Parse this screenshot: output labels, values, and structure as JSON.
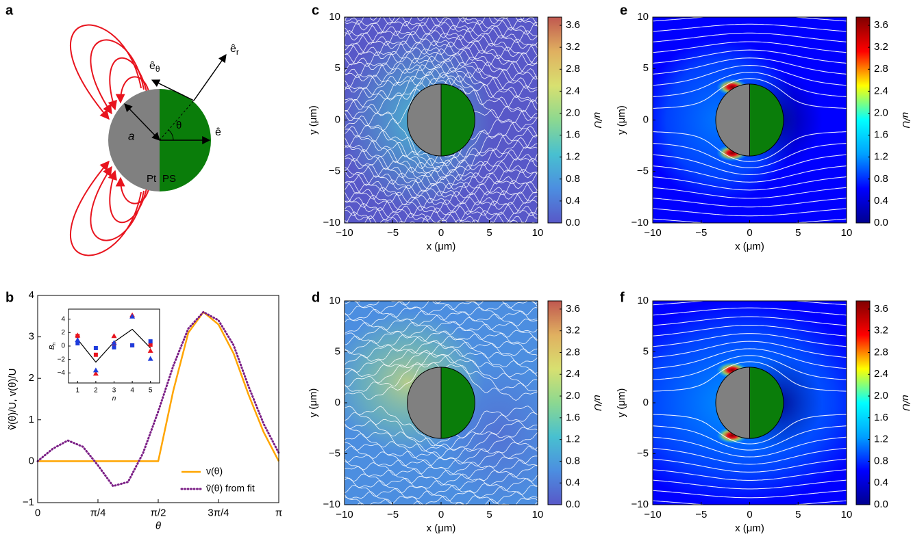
{
  "diagram": {
    "panel": "a",
    "e_theta": {
      "base": "ê",
      "sub": "θ"
    },
    "e_r": {
      "base": "ê",
      "sub": "r"
    },
    "radius": "a",
    "angle": "θ",
    "e": "ê",
    "left_material": "Pt",
    "right_material": "PS"
  },
  "chart_data": [
    {
      "type": "line",
      "panel": "b",
      "xlabel": "θ",
      "ylabel": "ṽ(θ)/U, v(θ)/U",
      "x": [
        0,
        0.196,
        0.393,
        0.589,
        0.785,
        0.982,
        1.178,
        1.374,
        1.571,
        1.767,
        1.963,
        2.16,
        2.356,
        2.553,
        2.749,
        2.945,
        3.1416
      ],
      "xlim": [
        0,
        3.1416
      ],
      "xticks": [
        0,
        {
          "value": 0.7854,
          "label": "π/4"
        },
        {
          "value": 1.5708,
          "label": "π/2"
        },
        {
          "value": 2.3562,
          "label": "3π/4"
        },
        {
          "value": 3.1416,
          "label": "π"
        }
      ],
      "ylim": [
        -1,
        4
      ],
      "yticks": [
        {
          "value": -1,
          "label": "−1"
        },
        0,
        1,
        2,
        3,
        4
      ],
      "legend": "lower right",
      "series": [
        {
          "name": "v(θ)",
          "color": "#ffa500",
          "style": "solid",
          "values": [
            0,
            0,
            0,
            0,
            0,
            0,
            0,
            0,
            0,
            1.7,
            3.1,
            3.6,
            3.3,
            2.6,
            1.6,
            0.7,
            0
          ]
        },
        {
          "name": "ṽ(θ) from fit",
          "color": "#7b1f86",
          "style": "dotted",
          "values": [
            0,
            0.3,
            0.5,
            0.35,
            -0.1,
            -0.6,
            -0.5,
            0.2,
            1.2,
            2.3,
            3.2,
            3.6,
            3.4,
            2.8,
            1.8,
            0.9,
            0.2
          ]
        }
      ]
    },
    {
      "type": "line",
      "xlabel": "n",
      "ylabel": {
        "base": "B",
        "sub": "n"
      },
      "x": [
        1,
        2,
        3,
        4,
        5
      ],
      "xlim": [
        0.5,
        5.5
      ],
      "xticks": [
        1,
        2,
        3,
        4,
        5
      ],
      "ylim": [
        -5.5,
        5.5
      ],
      "yticks": [
        {
          "value": -4,
          "label": "−4"
        },
        {
          "value": -2,
          "label": "−2"
        },
        0,
        2,
        4
      ],
      "series": [
        {
          "color": "#000000",
          "style": "solid",
          "values": [
            1.0,
            -2.4,
            0.6,
            2.5,
            -0.3
          ]
        },
        {
          "color": "#e8141e",
          "marker": "square",
          "values": [
            1.5,
            -1.3,
            0.3,
            0.1,
            0.2
          ]
        },
        {
          "color": "#1e3cdc",
          "marker": "square",
          "values": [
            0.4,
            -0.3,
            -0.2,
            0.1,
            0.7
          ]
        },
        {
          "color": "#e8141e",
          "marker": "triangle",
          "values": [
            1.6,
            -4.1,
            1.5,
            4.6,
            -0.7
          ]
        },
        {
          "color": "#1e3cdc",
          "marker": "triangle",
          "values": [
            0.9,
            -3.6,
            0.5,
            4.4,
            -1.9
          ]
        }
      ]
    },
    {
      "type": "heatmap",
      "panel": "c",
      "xlabel": "x (μm)",
      "ylabel": "y (μm)",
      "clabel": "u/U",
      "xlim": [
        -10,
        10
      ],
      "ylim": [
        -10,
        10
      ],
      "xticks": [
        {
          "value": -10,
          "label": "−10"
        },
        {
          "value": -5,
          "label": "−5"
        },
        0,
        5,
        10
      ],
      "yticks": [
        {
          "value": -10,
          "label": "−10"
        },
        {
          "value": -5,
          "label": "−5"
        },
        0,
        5,
        10
      ],
      "clim": [
        0,
        3.75
      ],
      "cticks": [
        {
          "value": 0,
          "label": "0.0"
        },
        0.4,
        0.8,
        1.2,
        1.6,
        {
          "value": 2,
          "label": "2.0"
        },
        2.4,
        2.8,
        3.2,
        3.6
      ],
      "colormap": [
        "#5858c8",
        "#4c8ee0",
        "#48c0d0",
        "#8cd890",
        "#d8e070",
        "#e0b060",
        "#c05850"
      ]
    },
    {
      "type": "heatmap",
      "panel": "d",
      "xlabel": "x (μm)",
      "ylabel": "y (μm)",
      "clabel": "u/U",
      "xlim": [
        -10,
        10
      ],
      "ylim": [
        -10,
        10
      ],
      "xticks": [
        {
          "value": -10,
          "label": "−10"
        },
        {
          "value": -5,
          "label": "−5"
        },
        0,
        5,
        10
      ],
      "yticks": [
        {
          "value": -10,
          "label": "−10"
        },
        {
          "value": -5,
          "label": "−5"
        },
        0,
        5,
        10
      ],
      "clim": [
        0,
        3.75
      ],
      "cticks": [
        {
          "value": 0,
          "label": "0.0"
        },
        0.4,
        0.8,
        1.2,
        1.6,
        {
          "value": 2,
          "label": "2.0"
        },
        2.4,
        2.8,
        3.2,
        3.6
      ],
      "colormap": [
        "#5858c8",
        "#4c8ee0",
        "#48c0d0",
        "#8cd890",
        "#d8e070",
        "#e0b060",
        "#c05850"
      ]
    },
    {
      "type": "heatmap",
      "panel": "e",
      "xlabel": "x (μm)",
      "ylabel": "y (μm)",
      "clabel": "u/U",
      "xlim": [
        -10,
        10
      ],
      "ylim": [
        -10,
        10
      ],
      "xticks": [
        {
          "value": -10,
          "label": "−10"
        },
        {
          "value": -5,
          "label": "−5"
        },
        0,
        5,
        10
      ],
      "yticks": [
        {
          "value": -10,
          "label": "−10"
        },
        {
          "value": -5,
          "label": "−5"
        },
        0,
        5,
        10
      ],
      "clim": [
        0,
        3.75
      ],
      "cticks": [
        {
          "value": 0,
          "label": "0.0"
        },
        0.4,
        0.8,
        1.2,
        1.6,
        {
          "value": 2,
          "label": "2.0"
        },
        2.4,
        2.8,
        3.2,
        3.6
      ],
      "colormap": [
        "#00008f",
        "#0000ff",
        "#00a0ff",
        "#00ffff",
        "#ffff00",
        "#ff0000",
        "#800000"
      ]
    },
    {
      "type": "heatmap",
      "panel": "f",
      "xlabel": "x (μm)",
      "ylabel": "y (μm)",
      "clabel": "u/U",
      "xlim": [
        -10,
        10
      ],
      "ylim": [
        -10,
        10
      ],
      "xticks": [
        {
          "value": -10,
          "label": "−10"
        },
        {
          "value": -5,
          "label": "−5"
        },
        0,
        5,
        10
      ],
      "yticks": [
        {
          "value": -10,
          "label": "−10"
        },
        {
          "value": -5,
          "label": "−5"
        },
        0,
        5,
        10
      ],
      "clim": [
        0,
        3.75
      ],
      "cticks": [
        {
          "value": 0,
          "label": "0.0"
        },
        0.4,
        0.8,
        1.2,
        1.6,
        {
          "value": 2,
          "label": "2.0"
        },
        2.4,
        2.8,
        3.2,
        3.6
      ],
      "colormap": [
        "#00008f",
        "#0000ff",
        "#00a0ff",
        "#00ffff",
        "#ffff00",
        "#ff0000",
        "#800000"
      ]
    }
  ]
}
